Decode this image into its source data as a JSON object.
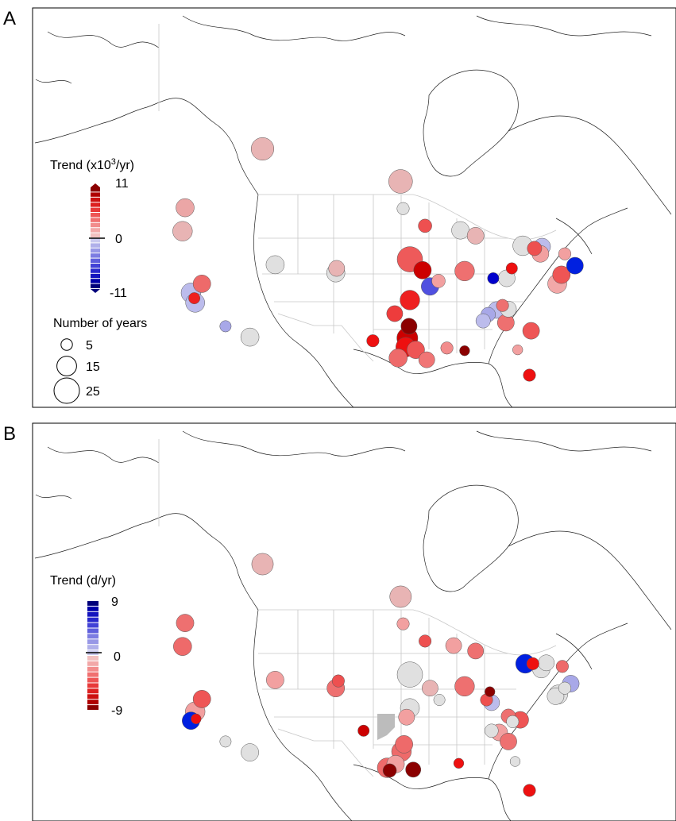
{
  "chart_data": [
    {
      "type": "scatter",
      "panel": "A",
      "subtype": "bubble-map",
      "legend_color": {
        "title": "Trend (x10",
        "title_sup": "3",
        "title_end": "/yr)",
        "max_label": "11",
        "zero_label": "0",
        "min_label": "-11",
        "colors_top_to_bottom": [
          "#8b0000",
          "#b00000",
          "#cc1010",
          "#dd2020",
          "#e83a3a",
          "#ee5555",
          "#f07070",
          "#f28c8c",
          "#f2a8a8",
          "#f2c0c0",
          "#c9c9ef",
          "#b0b0ea",
          "#9898e6",
          "#7c7ce2",
          "#5f5fdc",
          "#4242d6",
          "#2828cc",
          "#1414be",
          "#0000a8",
          "#00007a"
        ]
      },
      "legend_size": {
        "title": "Number of years",
        "entries": [
          {
            "label": "5",
            "value": 5
          },
          {
            "label": "15",
            "value": 15
          },
          {
            "label": "25",
            "value": 25
          }
        ]
      },
      "points": [
        {
          "lon": -148.0,
          "lat": 64.8,
          "years": 14,
          "color": "#e8b4b4"
        },
        {
          "lon": -113.5,
          "lat": 53.5,
          "years": 20,
          "color": "#e8b4b4"
        },
        {
          "lon": -97.1,
          "lat": 49.9,
          "years": 22,
          "color": "#e8b4b4"
        },
        {
          "lon": -96.8,
          "lat": 46.9,
          "years": 6,
          "color": "#e0e0e0"
        },
        {
          "lon": -122.7,
          "lat": 47.0,
          "years": 13,
          "color": "#eba6a6"
        },
        {
          "lon": -123.0,
          "lat": 44.4,
          "years": 15,
          "color": "#e8b4b4"
        },
        {
          "lon": -120.7,
          "lat": 38.6,
          "years": 12,
          "color": "#ee6a6a"
        },
        {
          "lon": -122.0,
          "lat": 37.6,
          "years": 15,
          "color": "#bcbcec"
        },
        {
          "lon": -121.5,
          "lat": 36.5,
          "years": 14,
          "color": "#bcbcec"
        },
        {
          "lon": -121.6,
          "lat": 37.0,
          "years": 5,
          "color": "#ee2020"
        },
        {
          "lon": -117.9,
          "lat": 33.9,
          "years": 5,
          "color": "#a8a8e8"
        },
        {
          "lon": -115.0,
          "lat": 32.7,
          "years": 13,
          "color": "#e0e0e0"
        },
        {
          "lon": -112.0,
          "lat": 40.7,
          "years": 13,
          "color": "#e0e0e0"
        },
        {
          "lon": -104.8,
          "lat": 39.8,
          "years": 13,
          "color": "#e0e0e0"
        },
        {
          "lon": -104.7,
          "lat": 40.3,
          "years": 10,
          "color": "#e8b4b4"
        },
        {
          "lon": -96.0,
          "lat": 41.3,
          "years": 25,
          "color": "#ee5a5a"
        },
        {
          "lon": -94.5,
          "lat": 40.1,
          "years": 12,
          "color": "#cc0000"
        },
        {
          "lon": -94.2,
          "lat": 45.0,
          "years": 7,
          "color": "#ee5050"
        },
        {
          "lon": -90.0,
          "lat": 44.5,
          "years": 12,
          "color": "#e0e0e0"
        },
        {
          "lon": -88.2,
          "lat": 43.9,
          "years": 11,
          "color": "#e8b4b4"
        },
        {
          "lon": -89.5,
          "lat": 40.0,
          "years": 15,
          "color": "#ee7070"
        },
        {
          "lon": -93.6,
          "lat": 38.3,
          "years": 12,
          "color": "#5050e0"
        },
        {
          "lon": -92.6,
          "lat": 38.9,
          "years": 7,
          "color": "#f2a0a0"
        },
        {
          "lon": -96.0,
          "lat": 36.8,
          "years": 15,
          "color": "#ee2020"
        },
        {
          "lon": -97.8,
          "lat": 35.3,
          "years": 10,
          "color": "#ee3c3c"
        },
        {
          "lon": -96.1,
          "lat": 33.9,
          "years": 10,
          "color": "#8b0000"
        },
        {
          "lon": -96.3,
          "lat": 32.6,
          "years": 17,
          "color": "#cc0000"
        },
        {
          "lon": -96.5,
          "lat": 31.6,
          "years": 15,
          "color": "#ee1010"
        },
        {
          "lon": -95.3,
          "lat": 31.3,
          "years": 12,
          "color": "#ee5555"
        },
        {
          "lon": -97.4,
          "lat": 30.4,
          "years": 13,
          "color": "#ee6a6a"
        },
        {
          "lon": -94.0,
          "lat": 30.2,
          "years": 10,
          "color": "#f07575"
        },
        {
          "lon": -100.4,
          "lat": 32.3,
          "years": 6,
          "color": "#ee1010"
        },
        {
          "lon": -91.6,
          "lat": 31.5,
          "years": 6,
          "color": "#f28c8c"
        },
        {
          "lon": -89.5,
          "lat": 31.2,
          "years": 4,
          "color": "#8b0000"
        },
        {
          "lon": -86.1,
          "lat": 39.2,
          "years": 5,
          "color": "#0000cc"
        },
        {
          "lon": -84.5,
          "lat": 39.2,
          "years": 11,
          "color": "#e0e0e0"
        },
        {
          "lon": -83.9,
          "lat": 40.3,
          "years": 5,
          "color": "#ee1010"
        },
        {
          "lon": -82.6,
          "lat": 42.8,
          "years": 15,
          "color": "#e0e0e0"
        },
        {
          "lon": -81.2,
          "lat": 42.5,
          "years": 8,
          "color": "#ee5050"
        },
        {
          "lon": -80.3,
          "lat": 42.7,
          "years": 11,
          "color": "#bcbcec"
        },
        {
          "lon": -80.5,
          "lat": 41.9,
          "years": 11,
          "color": "#f2a0a0"
        },
        {
          "lon": -77.6,
          "lat": 41.9,
          "years": 6,
          "color": "#f2a0a0"
        },
        {
          "lon": -76.4,
          "lat": 40.6,
          "years": 11,
          "color": "#0020e0"
        },
        {
          "lon": -78.0,
          "lat": 39.6,
          "years": 12,
          "color": "#ee5555"
        },
        {
          "lon": -78.5,
          "lat": 38.6,
          "years": 14,
          "color": "#f2a8a8"
        },
        {
          "lon": -85.0,
          "lat": 36.2,
          "years": 6,
          "color": "#ee7070"
        },
        {
          "lon": -84.3,
          "lat": 35.8,
          "years": 10,
          "color": "#e0e0e0"
        },
        {
          "lon": -85.7,
          "lat": 35.7,
          "years": 11,
          "color": "#bcbcec"
        },
        {
          "lon": -86.7,
          "lat": 35.2,
          "years": 8,
          "color": "#a8a8e8"
        },
        {
          "lon": -87.3,
          "lat": 34.5,
          "years": 8,
          "color": "#bcbcec"
        },
        {
          "lon": -84.6,
          "lat": 34.3,
          "years": 11,
          "color": "#ee7070"
        },
        {
          "lon": -81.6,
          "lat": 33.4,
          "years": 11,
          "color": "#ee5555"
        },
        {
          "lon": -83.2,
          "lat": 31.3,
          "years": 4,
          "color": "#f2a0a0"
        },
        {
          "lon": -81.8,
          "lat": 28.5,
          "years": 6,
          "color": "#ee1010"
        }
      ]
    },
    {
      "type": "scatter",
      "panel": "B",
      "subtype": "bubble-map",
      "legend_color": {
        "title": "Trend (d/yr)",
        "max_label": "9",
        "zero_label": "0",
        "min_label": "-9",
        "colors_top_to_bottom": [
          "#00007a",
          "#0000a8",
          "#1414be",
          "#2828cc",
          "#4242d6",
          "#5f5fdc",
          "#7c7ce2",
          "#9898e6",
          "#b0b0ea",
          "#c9c9ef",
          "#f2c0c0",
          "#f2a8a8",
          "#f28c8c",
          "#f07070",
          "#ee5555",
          "#e83a3a",
          "#dd2020",
          "#cc1010",
          "#b00000",
          "#8b0000"
        ]
      },
      "points": [
        {
          "lon": -148.0,
          "lat": 64.8,
          "years": 12,
          "color": "#e0e0e0"
        },
        {
          "lon": -113.5,
          "lat": 53.5,
          "years": 18,
          "color": "#e8b4b4"
        },
        {
          "lon": -97.1,
          "lat": 49.9,
          "years": 18,
          "color": "#e8b4b4"
        },
        {
          "lon": -96.8,
          "lat": 46.9,
          "years": 6,
          "color": "#f2a0a0"
        },
        {
          "lon": -122.7,
          "lat": 47.0,
          "years": 12,
          "color": "#ee7070"
        },
        {
          "lon": -123.0,
          "lat": 44.4,
          "years": 13,
          "color": "#ee6a6a"
        },
        {
          "lon": -120.7,
          "lat": 38.6,
          "years": 12,
          "color": "#ee5555"
        },
        {
          "lon": -121.5,
          "lat": 37.2,
          "years": 15,
          "color": "#f2a0a0"
        },
        {
          "lon": -122.0,
          "lat": 36.2,
          "years": 12,
          "color": "#0020e0"
        },
        {
          "lon": -121.4,
          "lat": 36.4,
          "years": 4,
          "color": "#ee1010"
        },
        {
          "lon": -117.9,
          "lat": 33.9,
          "years": 5,
          "color": "#e0e0e0"
        },
        {
          "lon": -115.0,
          "lat": 32.7,
          "years": 12,
          "color": "#e0e0e0"
        },
        {
          "lon": -112.0,
          "lat": 40.7,
          "years": 12,
          "color": "#f2a0a0"
        },
        {
          "lon": -104.8,
          "lat": 39.8,
          "years": 12,
          "color": "#ee7070"
        },
        {
          "lon": -104.5,
          "lat": 40.6,
          "years": 6,
          "color": "#ee5050"
        },
        {
          "lon": -96.0,
          "lat": 41.3,
          "years": 25,
          "color": "#e0e0e0"
        },
        {
          "lon": -94.2,
          "lat": 45.0,
          "years": 6,
          "color": "#ee5050"
        },
        {
          "lon": -90.8,
          "lat": 44.5,
          "years": 10,
          "color": "#f2a0a0"
        },
        {
          "lon": -88.2,
          "lat": 43.9,
          "years": 10,
          "color": "#ee7070"
        },
        {
          "lon": -89.5,
          "lat": 40.0,
          "years": 15,
          "color": "#ee7070"
        },
        {
          "lon": -93.6,
          "lat": 39.8,
          "years": 10,
          "color": "#e8b4b4"
        },
        {
          "lon": -92.5,
          "lat": 38.5,
          "years": 5,
          "color": "#e0e0e0"
        },
        {
          "lon": -96.0,
          "lat": 37.6,
          "years": 14,
          "color": "#e0e0e0"
        },
        {
          "lon": -96.4,
          "lat": 36.6,
          "years": 10,
          "color": "#f2a0a0"
        },
        {
          "lon": -101.5,
          "lat": 35.1,
          "years": 5,
          "color": "#cc0000"
        },
        {
          "lon": -96.7,
          "lat": 33.6,
          "years": 12,
          "color": "#ee6a6a"
        },
        {
          "lon": -97.0,
          "lat": 32.8,
          "years": 15,
          "color": "#ee6a6a"
        },
        {
          "lon": -97.7,
          "lat": 31.4,
          "years": 12,
          "color": "#f2a0a0"
        },
        {
          "lon": -98.7,
          "lat": 31.0,
          "years": 15,
          "color": "#ee6a6a"
        },
        {
          "lon": -95.6,
          "lat": 30.8,
          "years": 9,
          "color": "#8b0000"
        },
        {
          "lon": -98.4,
          "lat": 30.7,
          "years": 7,
          "color": "#8b0000"
        },
        {
          "lon": -90.2,
          "lat": 31.5,
          "years": 4,
          "color": "#ee1010"
        },
        {
          "lon": -86.3,
          "lat": 38.2,
          "years": 10,
          "color": "#bcbcec"
        },
        {
          "lon": -86.9,
          "lat": 38.5,
          "years": 6,
          "color": "#ee5050"
        },
        {
          "lon": -86.5,
          "lat": 39.4,
          "years": 4,
          "color": "#8b0000"
        },
        {
          "lon": -82.3,
          "lat": 42.5,
          "years": 14,
          "color": "#0020e0"
        },
        {
          "lon": -81.4,
          "lat": 42.5,
          "years": 6,
          "color": "#ee1010"
        },
        {
          "lon": -80.4,
          "lat": 41.9,
          "years": 12,
          "color": "#e0e0e0"
        },
        {
          "lon": -79.8,
          "lat": 42.6,
          "years": 10,
          "color": "#e0e0e0"
        },
        {
          "lon": -77.9,
          "lat": 42.2,
          "years": 6,
          "color": "#ee6a6a"
        },
        {
          "lon": -76.9,
          "lat": 40.3,
          "years": 11,
          "color": "#a8a8e8"
        },
        {
          "lon": -77.6,
          "lat": 39.8,
          "years": 6,
          "color": "#e0e0e0"
        },
        {
          "lon": -78.4,
          "lat": 39.1,
          "years": 14,
          "color": "#e0e0e0"
        },
        {
          "lon": -78.7,
          "lat": 38.9,
          "years": 11,
          "color": "#e0e0e0"
        },
        {
          "lon": -84.3,
          "lat": 36.7,
          "years": 8,
          "color": "#ee7070"
        },
        {
          "lon": -82.9,
          "lat": 36.3,
          "years": 11,
          "color": "#ee5555"
        },
        {
          "lon": -83.8,
          "lat": 36.1,
          "years": 6,
          "color": "#e0e0e0"
        },
        {
          "lon": -86.3,
          "lat": 35.1,
          "years": 7,
          "color": "#e0e0e0"
        },
        {
          "lon": -85.4,
          "lat": 34.9,
          "years": 11,
          "color": "#f2a0a0"
        },
        {
          "lon": -84.3,
          "lat": 33.9,
          "years": 11,
          "color": "#ee7070"
        },
        {
          "lon": -83.5,
          "lat": 31.7,
          "years": 4,
          "color": "#e0e0e0"
        },
        {
          "lon": -81.8,
          "lat": 28.5,
          "years": 6,
          "color": "#ee1010"
        }
      ],
      "shaded_region_color": "#bcbcbc"
    }
  ],
  "colors": {
    "neutral": "#e0e0e0",
    "coastline": "#222222",
    "borders": "#c8c8c8",
    "frame": "#000000"
  }
}
